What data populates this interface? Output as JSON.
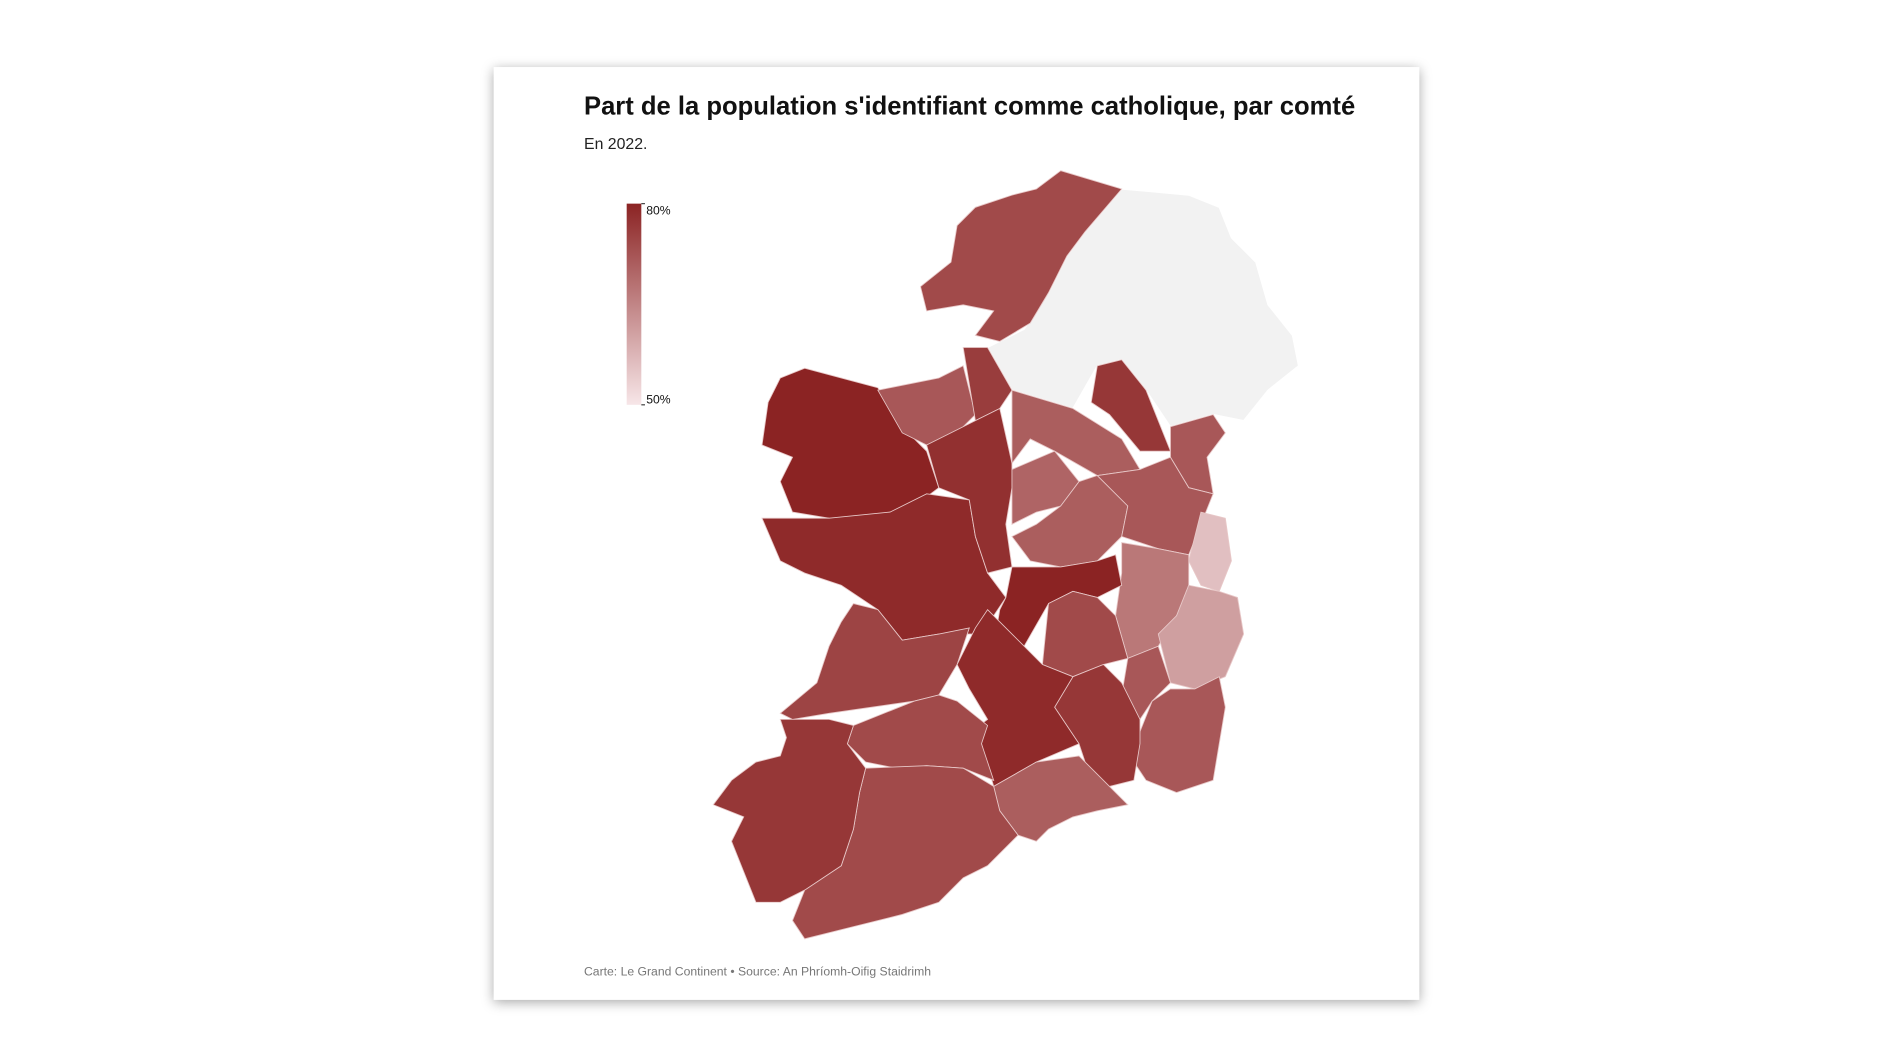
{
  "chart_data": {
    "type": "choropleth",
    "title": "Part de la population s'identifiant comme catholique, par comté",
    "subtitle": "En 2022.",
    "source": "Carte: Le Grand Continent • Source: An Phríomh-Oifig Staidrimh",
    "values": [
      74,
      80,
      79,
      72,
      76,
      78,
      71,
      77,
      72,
      70,
      71,
      72,
      56,
      67,
      61,
      80,
      74,
      72,
      72,
      77,
      79,
      75,
      74,
      71,
      74,
      77
    ],
    "colorscale": {
      "lim": [
        50,
        80
      ],
      "ticks": [
        {
          "value": 80,
          "label": "80%"
        },
        {
          "value": 50,
          "label": "50%"
        }
      ],
      "colors": [
        "#f7e6e8",
        "#8b2323"
      ]
    }
  }
}
